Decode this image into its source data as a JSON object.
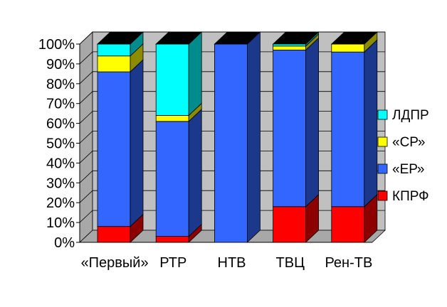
{
  "chart_data": {
    "type": "bar",
    "stacked": true,
    "percent": true,
    "three_d": true,
    "title": "",
    "xlabel": "",
    "ylabel": "",
    "ylim": [
      0,
      100
    ],
    "yticks": [
      "0%",
      "10%",
      "20%",
      "30%",
      "40%",
      "50%",
      "60%",
      "70%",
      "80%",
      "90%",
      "100%"
    ],
    "categories": [
      "«Первый»",
      "РТР",
      "НТВ",
      "ТВЦ",
      "Рен-ТВ"
    ],
    "series": [
      {
        "name": "КПРФ",
        "color": "#ff0000",
        "values": [
          8,
          3,
          0,
          18,
          18
        ]
      },
      {
        "name": "«ЕР»",
        "color": "#3366ff",
        "values": [
          78,
          58,
          100,
          79,
          78
        ]
      },
      {
        "name": "«СР»",
        "color": "#ffff00",
        "values": [
          8,
          3,
          0,
          2,
          4
        ]
      },
      {
        "name": "ЛДПР",
        "color": "#00ffff",
        "values": [
          6,
          36,
          0,
          1,
          0
        ]
      }
    ],
    "legend_position": "right",
    "legend_order": [
      "ЛДПР",
      "«СР»",
      "«ЕР»",
      "КПРФ"
    ],
    "grid": true,
    "wall_color": "#c0c0c0"
  }
}
